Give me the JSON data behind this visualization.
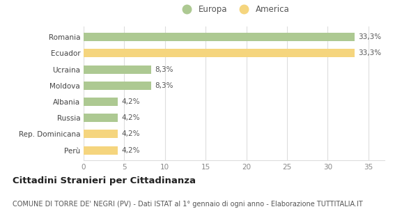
{
  "categories": [
    "Romania",
    "Ecuador",
    "Ucraina",
    "Moldova",
    "Albania",
    "Russia",
    "Rep. Dominicana",
    "Perù"
  ],
  "values": [
    33.3,
    33.3,
    8.3,
    8.3,
    4.2,
    4.2,
    4.2,
    4.2
  ],
  "labels": [
    "33,3%",
    "33,3%",
    "8,3%",
    "8,3%",
    "4,2%",
    "4,2%",
    "4,2%",
    "4,2%"
  ],
  "colors": [
    "#adc992",
    "#f5d57e",
    "#adc992",
    "#adc992",
    "#adc992",
    "#adc992",
    "#f5d57e",
    "#f5d57e"
  ],
  "legend_europa_color": "#adc992",
  "legend_america_color": "#f5d57e",
  "legend_europa_label": "Europa",
  "legend_america_label": "America",
  "xlim": [
    0,
    37
  ],
  "xticks": [
    0,
    5,
    10,
    15,
    20,
    25,
    30,
    35
  ],
  "title": "Cittadini Stranieri per Cittadinanza",
  "subtitle": "COMUNE DI TORRE DE' NEGRI (PV) - Dati ISTAT al 1° gennaio di ogni anno - Elaborazione TUTTITALIA.IT",
  "title_fontsize": 9.5,
  "subtitle_fontsize": 7,
  "label_fontsize": 7.5,
  "tick_fontsize": 7.5,
  "legend_fontsize": 8.5,
  "background_color": "#ffffff",
  "grid_color": "#dddddd",
  "bar_height": 0.52
}
